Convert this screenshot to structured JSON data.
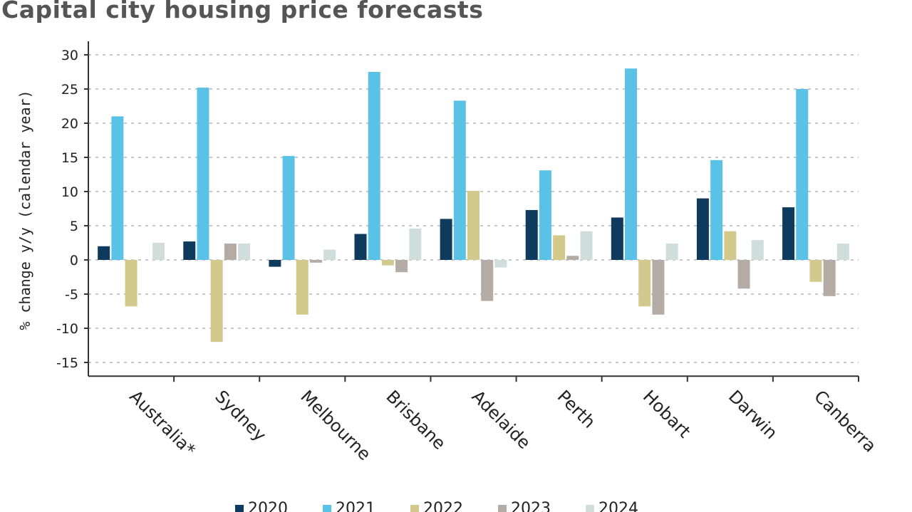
{
  "chart_data": {
    "type": "bar",
    "title": "Capital city housing price forecasts",
    "xlabel": "",
    "ylabel": "% change y/y (calendar year)",
    "ylim": [
      -17,
      32
    ],
    "yticks": [
      30,
      25,
      20,
      15,
      10,
      5,
      0,
      -5,
      -10,
      -15
    ],
    "grid": true,
    "legend_position": "bottom",
    "categories": [
      "Australia*",
      "Sydney",
      "Melbourne",
      "Brisbane",
      "Adelaide",
      "Perth",
      "Hobart",
      "Darwin",
      "Canberra"
    ],
    "series": [
      {
        "name": "2020",
        "color": "#0e3a5e",
        "values": [
          2.0,
          2.7,
          -1.0,
          3.8,
          6.0,
          7.3,
          6.2,
          9.0,
          7.7
        ]
      },
      {
        "name": "2021",
        "color": "#5bc2e7",
        "values": [
          21.0,
          25.2,
          15.2,
          27.5,
          23.3,
          13.1,
          28.0,
          14.6,
          25.0
        ]
      },
      {
        "name": "2022",
        "color": "#d3c98d",
        "values": [
          -6.8,
          -12.0,
          -8.0,
          -0.8,
          10.1,
          3.6,
          -6.8,
          4.2,
          -3.2
        ]
      },
      {
        "name": "2023",
        "color": "#b4aba4",
        "values": [
          0.0,
          2.4,
          -0.4,
          -1.8,
          -6.0,
          0.6,
          -8.0,
          -4.2,
          -5.3
        ]
      },
      {
        "name": "2024",
        "color": "#cfdddb",
        "values": [
          2.5,
          2.4,
          1.5,
          4.6,
          -1.1,
          4.2,
          2.4,
          2.9,
          2.4
        ]
      }
    ]
  }
}
